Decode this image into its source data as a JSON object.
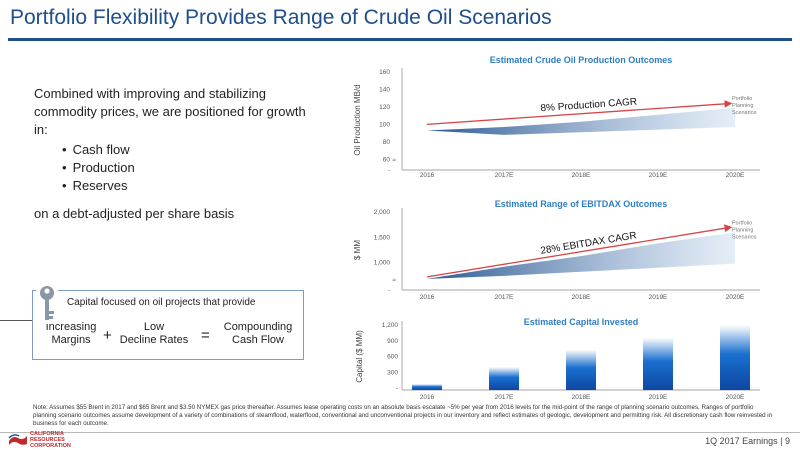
{
  "header": {
    "title": "Portfolio Flexibility Provides Range of Crude Oil Scenarios"
  },
  "left": {
    "intro": "Combined with improving and stabilizing commodity prices, we are positioned for growth in:",
    "bullets": [
      "Cash flow",
      "Production",
      "Reserves"
    ],
    "closing": "on a debt-adjusted per share basis"
  },
  "capital_box": {
    "heading": "Capital focused on oil projects that provide",
    "term1_line1": "Increasing",
    "term1_line2": "Margins",
    "plus": "+",
    "term2_line1": "Low",
    "term2_line2": "Decline Rates",
    "equals": "=",
    "term3_line1": "Compounding",
    "term3_line2": "Cash Flow"
  },
  "icons": [
    "key-icon",
    "california-resources-logo"
  ],
  "footer": {
    "note": "Note: Assumes $55 Brent in 2017 and $65 Brent and $3.50 NYMEX gas price thereafter. Assumes lease operating costs on an absolute basis escalate ~5% per year from 2016 levels for the mid-point of the range of planning scenario outcomes. Ranges of portfolio planning scenario outcomes assume development of a variety of combinations of steamflood, waterflood, conventional and unconventional projects in our inventory and reflect estimates of geologic, development and permitting risk. All discretionary cash flow reinvested in business for each outcome.",
    "page_label": "1Q 2017 Earnings | 9",
    "logo_line1": "CALIFORNIA",
    "logo_line2": "RESOURCES",
    "logo_line3": "CORPORATION"
  },
  "colors": {
    "brand_blue": "#1f4e8c",
    "chart_title": "#2f7ec2",
    "trend_red": "#d64545",
    "bar_blue": "#1565c0",
    "logo_red": "#c2272d"
  },
  "chart_data": [
    {
      "type": "area",
      "title": "Estimated Crude Oil Production Outcomes",
      "ylabel": "Oil Production MB/d",
      "x": [
        "2016",
        "2017E",
        "2018E",
        "2019E",
        "2020E"
      ],
      "yticks": [
        "-",
        "60",
        "80",
        "100",
        "120",
        "140",
        "160"
      ],
      "ylim": [
        50,
        160
      ],
      "band_low": [
        93,
        88,
        91,
        94,
        97
      ],
      "band_high": [
        93,
        97,
        103,
        111,
        119
      ],
      "cagr_label": "8% Production CAGR",
      "trend": [
        100,
        124
      ],
      "band_label": [
        "Portfolio",
        "Planning",
        "Scenarios"
      ]
    },
    {
      "type": "area",
      "title": "Estimated Range of EBITDAX Outcomes",
      "ylabel": "$ MM",
      "x": [
        "2016",
        "2017E",
        "2018E",
        "2019E",
        "2020E"
      ],
      "yticks": [
        "-",
        "1,000",
        "1,500",
        "2,000"
      ],
      "ylim": [
        500,
        2000
      ],
      "band_low": [
        680,
        740,
        820,
        900,
        980
      ],
      "band_high": [
        680,
        920,
        1130,
        1380,
        1600
      ],
      "cagr_label": "28% EBITDAX CAGR",
      "trend": [
        720,
        1700
      ],
      "band_label": [
        "Portfolio",
        "Planning",
        "Scenarios"
      ]
    },
    {
      "type": "bar",
      "title": "Estimated Capital Invested",
      "ylabel": "Capital ($ MM)",
      "categories": [
        "2016",
        "2017E",
        "2018E",
        "2019E",
        "2020E"
      ],
      "values": [
        75,
        400,
        730,
        960,
        1200
      ],
      "yticks": [
        "-",
        "300",
        "600",
        "900",
        "1,200"
      ],
      "ylim": [
        0,
        1200
      ]
    }
  ]
}
